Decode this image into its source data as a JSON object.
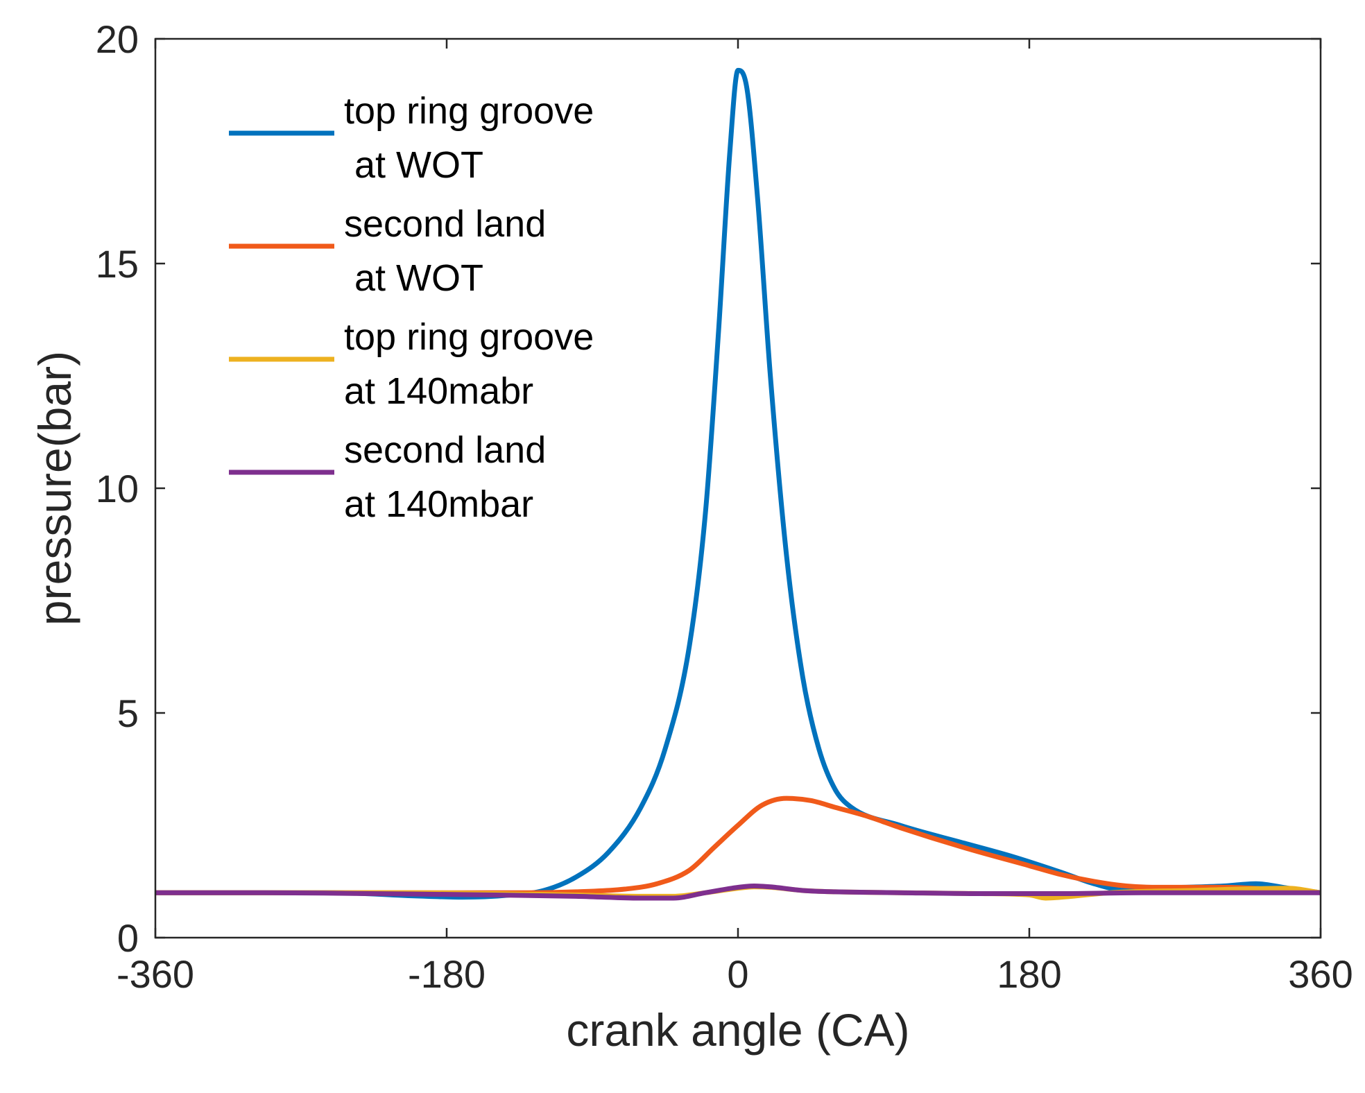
{
  "chart_data": {
    "type": "line",
    "title": "",
    "xlabel": "crank angle (CA)",
    "ylabel": "pressure(bar)",
    "xlim": [
      -360,
      360
    ],
    "ylim": [
      0,
      20
    ],
    "xticks": [
      -360,
      -180,
      0,
      180,
      360
    ],
    "yticks": [
      0,
      5,
      10,
      15,
      20
    ],
    "xtick_labels": [
      "-360",
      "-180",
      "0",
      "180",
      "360"
    ],
    "ytick_labels": [
      "0",
      "5",
      "10",
      "15",
      "20"
    ],
    "grid": false,
    "legend_position": "top-left",
    "series": [
      {
        "name": "top ring groove at WOT",
        "legend_lines": [
          "top ring groove",
          " at WOT"
        ],
        "color": "#0072BD",
        "x": [
          -360,
          -300,
          -250,
          -200,
          -170,
          -140,
          -120,
          -100,
          -80,
          -60,
          -45,
          -30,
          -20,
          -12,
          -5,
          0,
          5,
          12,
          20,
          30,
          40,
          50,
          60,
          70,
          100,
          140,
          170,
          200,
          220,
          240,
          260,
          300,
          320,
          340,
          360
        ],
        "y": [
          1.0,
          1.0,
          1.0,
          0.93,
          0.9,
          0.95,
          1.05,
          1.35,
          1.9,
          2.9,
          4.2,
          6.5,
          9.5,
          13.5,
          17.5,
          19.3,
          19.0,
          16.5,
          12.5,
          8.5,
          5.8,
          4.2,
          3.3,
          2.9,
          2.5,
          2.1,
          1.8,
          1.45,
          1.2,
          1.05,
          1.1,
          1.15,
          1.2,
          1.1,
          1.0
        ]
      },
      {
        "name": "second land at WOT",
        "legend_lines": [
          "second land",
          " at WOT"
        ],
        "color": "#F05A1A",
        "x": [
          -360,
          -250,
          -180,
          -130,
          -100,
          -70,
          -50,
          -30,
          -15,
          0,
          15,
          30,
          45,
          60,
          80,
          100,
          140,
          180,
          200,
          220,
          240,
          260,
          300,
          340,
          360
        ],
        "y": [
          1.0,
          1.0,
          1.0,
          1.0,
          1.02,
          1.08,
          1.2,
          1.5,
          2.0,
          2.5,
          2.95,
          3.1,
          3.05,
          2.9,
          2.7,
          2.45,
          2.0,
          1.6,
          1.4,
          1.25,
          1.15,
          1.12,
          1.12,
          1.05,
          1.0
        ]
      },
      {
        "name": "top ring groove at 140mabr",
        "legend_lines": [
          "top ring groove",
          "at 140mabr"
        ],
        "color": "#EDB120",
        "x": [
          -360,
          -300,
          -200,
          -150,
          -100,
          -60,
          -40,
          -20,
          0,
          10,
          20,
          40,
          60,
          100,
          150,
          180,
          190,
          200,
          230,
          280,
          340,
          360
        ],
        "y": [
          1.0,
          1.0,
          1.0,
          0.98,
          0.95,
          0.92,
          0.92,
          1.0,
          1.1,
          1.13,
          1.12,
          1.05,
          1.02,
          1.0,
          0.98,
          0.95,
          0.88,
          0.9,
          1.0,
          1.05,
          1.1,
          1.0
        ]
      },
      {
        "name": "second land at 140mbar",
        "legend_lines": [
          "second land",
          "at 140mbar"
        ],
        "color": "#7E2F8E",
        "x": [
          -360,
          -300,
          -200,
          -150,
          -100,
          -60,
          -40,
          -20,
          0,
          10,
          20,
          40,
          60,
          100,
          150,
          200,
          250,
          300,
          340,
          360
        ],
        "y": [
          1.0,
          1.0,
          0.97,
          0.95,
          0.92,
          0.88,
          0.88,
          1.0,
          1.12,
          1.15,
          1.13,
          1.05,
          1.02,
          1.0,
          0.98,
          0.98,
          1.0,
          1.0,
          1.0,
          1.0
        ]
      }
    ]
  }
}
